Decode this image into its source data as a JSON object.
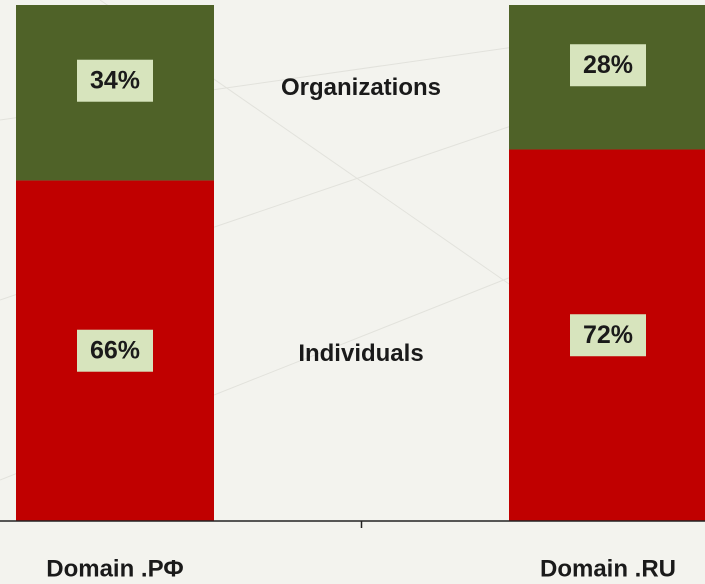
{
  "chart_data": {
    "type": "stacked-bar",
    "categories": [
      "Domain .РФ",
      "Domain .RU"
    ],
    "series": [
      {
        "name": "Individuals",
        "color": "#c00000",
        "values": [
          66,
          72
        ],
        "value_labels": [
          "66%",
          "72%"
        ]
      },
      {
        "name": "Organizations",
        "color": "#4f6228",
        "values": [
          34,
          28
        ],
        "value_labels": [
          "34%",
          "28%"
        ]
      }
    ],
    "label_box_color": "#d7e4bd"
  }
}
